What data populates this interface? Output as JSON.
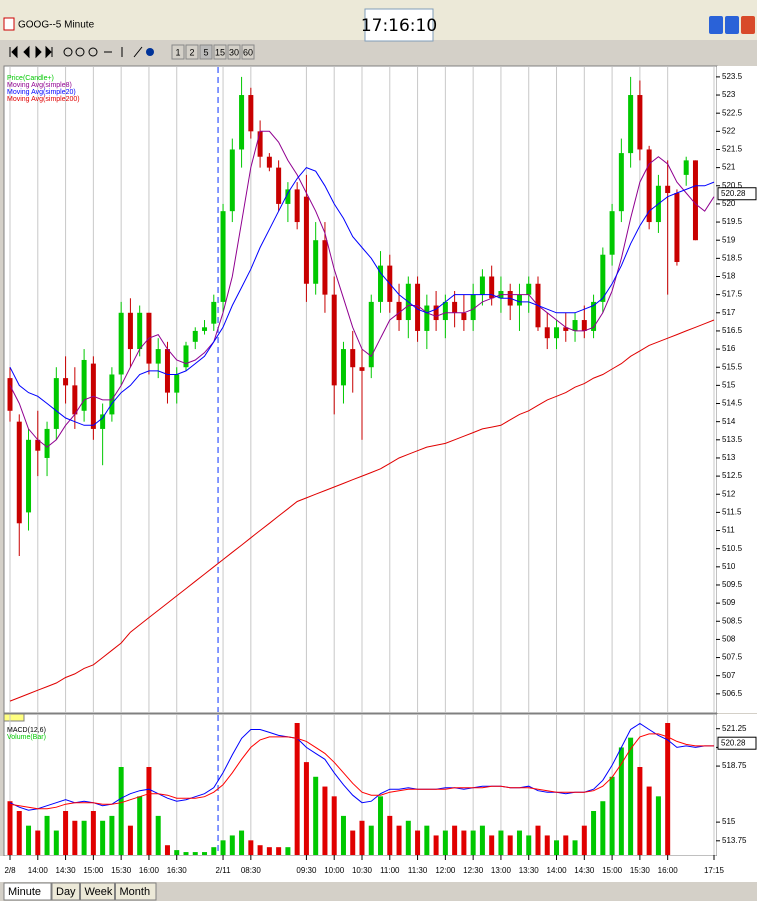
{
  "window": {
    "title": "GOOG--5 Minute",
    "clock": "17:16:10"
  },
  "toolbar": {
    "intervals": [
      "1",
      "2",
      "5",
      "15",
      "30",
      "60"
    ]
  },
  "tabs": [
    "Minute",
    "Day",
    "Week",
    "Month"
  ],
  "chart_data": [
    {
      "type": "candlestick",
      "categories": [
        "2/8",
        null,
        null,
        "14:00",
        null,
        null,
        "14:30",
        null,
        null,
        "15:00",
        null,
        null,
        "15:30",
        null,
        null,
        "16:00",
        null,
        null,
        "16:30",
        null,
        null,
        null,
        null,
        "2/11",
        null,
        null,
        "08:30",
        null,
        null,
        null,
        null,
        null,
        "09:30",
        null,
        null,
        "10:00",
        null,
        null,
        "10:30",
        null,
        null,
        "11:00",
        null,
        null,
        "11:30",
        null,
        null,
        "12:00",
        null,
        null,
        "12:30",
        null,
        null,
        "13:00",
        null,
        null,
        "13:30",
        null,
        null,
        "14:00",
        null,
        null,
        "14:30",
        null,
        null,
        "15:00",
        null,
        null,
        "15:30",
        null,
        null,
        "16:00",
        null,
        null,
        null,
        null,
        "17:15"
      ],
      "ylim": [
        506,
        523.8
      ],
      "yticks": [
        506.5,
        507,
        507.5,
        508,
        508.5,
        509,
        509.5,
        510,
        510.5,
        511,
        511.5,
        512,
        512.5,
        513,
        513.5,
        514,
        514.5,
        515,
        515.5,
        516,
        516.5,
        517,
        517.5,
        518,
        518.5,
        519,
        519.5,
        520,
        520.5,
        521,
        521.5,
        522,
        522.5,
        523,
        523.5
      ],
      "grid": true,
      "last_price": 520.28,
      "series": [
        {
          "name": "Price(Candle+)",
          "color": "#00c800",
          "down_color": "#c80000",
          "open": [
            515.2,
            514,
            511.5,
            513.5,
            513,
            513.8,
            515.2,
            515,
            514.3,
            515.6,
            513.8,
            514.2,
            515.3,
            517,
            516,
            517,
            515.6,
            516,
            514.8,
            515.5,
            516.2,
            516.5,
            516.7,
            517.3,
            519.8,
            521.5,
            523,
            522,
            521.3,
            521,
            520,
            520.4,
            520.2,
            517.8,
            519,
            517.5,
            515,
            516,
            515.5,
            515.5,
            517.3,
            518.3,
            517.3,
            516.8,
            517.8,
            516.5,
            517.2,
            516.8,
            517.3,
            517,
            516.8,
            517.5,
            518,
            517.4,
            517.6,
            517.2,
            517.5,
            517.8,
            516.6,
            516.3,
            516.6,
            516.5,
            516.8,
            516.5,
            517.3,
            518.6,
            519.8,
            521.4,
            523,
            521.5,
            519.5,
            520.5,
            520.3,
            520.8,
            521.2,
            null,
            null
          ],
          "high": [
            515.5,
            514.2,
            513.8,
            514.3,
            514,
            515.5,
            515.8,
            515.5,
            516,
            515.8,
            514.5,
            515.5,
            517.3,
            517.4,
            517.2,
            517,
            516.3,
            516.2,
            515.5,
            516.2,
            516.6,
            516.8,
            517.5,
            520,
            521.8,
            523.5,
            523.2,
            522.3,
            521.4,
            521.2,
            520.6,
            520.6,
            520.8,
            519.5,
            519.5,
            518,
            516.2,
            516.5,
            516,
            517.5,
            518.7,
            518.6,
            517.8,
            518,
            518,
            517.5,
            517.6,
            517.5,
            517.6,
            517.5,
            517.8,
            518.2,
            518.3,
            518,
            517.8,
            517.8,
            518,
            518,
            517,
            516.8,
            517,
            517,
            517.2,
            517.5,
            518.8,
            520,
            521.8,
            523.5,
            523.4,
            521.6,
            520.8,
            521.2,
            520.4,
            521.3,
            521.2,
            null,
            null
          ],
          "low": [
            514,
            510.3,
            511,
            512.5,
            512.5,
            513.5,
            514.5,
            513.8,
            514,
            513.5,
            512.8,
            514,
            515,
            515.5,
            515.8,
            515.3,
            515.2,
            514.5,
            514.5,
            515.4,
            516,
            516.4,
            516.5,
            517,
            519.5,
            521,
            521.8,
            521,
            520.9,
            519.8,
            519.5,
            519.3,
            517.3,
            517.5,
            517,
            514.2,
            514.5,
            514.8,
            513.5,
            515.2,
            517,
            517,
            516.5,
            516.3,
            516.2,
            516,
            516.5,
            516.3,
            516.6,
            516.5,
            516.5,
            517.2,
            517.2,
            517,
            516.8,
            516.5,
            517,
            516.5,
            516,
            516,
            516.2,
            516.2,
            516.3,
            516.3,
            517,
            518.3,
            519.5,
            521,
            521.2,
            519.3,
            519.2,
            517.5,
            518.3,
            520.5,
            519,
            null,
            null
          ],
          "close": [
            514.3,
            511.2,
            513.5,
            513.2,
            513.8,
            515.2,
            515,
            514.2,
            515.7,
            513.8,
            514.2,
            515.3,
            517,
            516,
            517,
            515.6,
            516,
            514.8,
            515.3,
            516.1,
            516.5,
            516.6,
            517.3,
            519.8,
            521.5,
            523,
            522,
            521.3,
            521,
            520,
            520.4,
            519.5,
            517.8,
            519,
            517.5,
            515,
            516,
            515.5,
            515.4,
            517.3,
            518.3,
            517.3,
            516.8,
            517.8,
            516.5,
            517.2,
            516.8,
            517.3,
            517,
            516.8,
            517.5,
            518,
            517.4,
            517.6,
            517.2,
            517.5,
            517.8,
            516.6,
            516.3,
            516.6,
            516.5,
            516.8,
            516.5,
            517.3,
            518.6,
            519.8,
            521.4,
            523,
            521.5,
            519.5,
            520.5,
            520.3,
            518.4,
            521.2,
            519,
            null,
            null
          ]
        },
        {
          "name": "Moving Avg(simple8)",
          "color": "#900090",
          "values": [
            515,
            514.5,
            513.8,
            513.5,
            513.3,
            513.5,
            513.9,
            514.2,
            514.6,
            514.7,
            514.6,
            514.6,
            515,
            515.5,
            516,
            516.3,
            516.4,
            516,
            515.7,
            515.6,
            515.7,
            515.9,
            516.2,
            517,
            518,
            519.5,
            521,
            522,
            522,
            521.7,
            521.2,
            520.8,
            520.3,
            519.8,
            519.2,
            518.2,
            517.4,
            516.6,
            516,
            515.8,
            516.3,
            516.8,
            517,
            517.2,
            517.2,
            517,
            516.9,
            517,
            517,
            517,
            517.1,
            517.3,
            517.4,
            517.5,
            517.5,
            517.5,
            517.5,
            517.2,
            517,
            516.8,
            516.6,
            516.5,
            516.5,
            516.6,
            517,
            517.6,
            518.5,
            519.6,
            520.6,
            521.1,
            521.3,
            521.1,
            520.6,
            520.3,
            520,
            519.8,
            520.2
          ]
        },
        {
          "name": "Moving Avg(simple20)",
          "color": "#0000ff",
          "values": [
            515.5,
            515,
            514.8,
            514.7,
            514.5,
            514.3,
            514.1,
            514,
            513.9,
            513.9,
            514.1,
            514.5,
            514.8,
            515,
            515.3,
            515.4,
            515.4,
            515.3,
            515.3,
            515.4,
            515.6,
            515.8,
            516.2,
            516.6,
            517.2,
            517.7,
            518.2,
            518.8,
            519.3,
            519.8,
            520.3,
            520.7,
            521,
            520.9,
            520.5,
            520,
            519.6,
            519.1,
            518.8,
            518.5,
            518.1,
            517.8,
            517.5,
            517.3,
            517.1,
            517,
            517.1,
            517.3,
            517.5,
            517.5,
            517.5,
            517.5,
            517.5,
            517.4,
            517.4,
            517.3,
            517.3,
            517.2,
            517.1,
            517,
            517,
            517,
            517.1,
            517.2,
            517.4,
            517.8,
            518.3,
            518.9,
            519.4,
            519.8,
            520,
            520.2,
            520.3,
            520.4,
            520.5,
            520.5,
            520.6
          ]
        },
        {
          "name": "Moving Avg(simple200)",
          "color": "#e00000",
          "values": [
            506.3,
            506.4,
            506.5,
            506.6,
            506.7,
            506.8,
            506.95,
            507.05,
            507.2,
            507.3,
            507.5,
            507.7,
            507.9,
            508.2,
            508.4,
            508.6,
            508.8,
            509,
            509.2,
            509.4,
            509.6,
            509.8,
            510,
            510.2,
            510.4,
            510.6,
            510.8,
            511,
            511.2,
            511.4,
            511.6,
            511.8,
            511.9,
            512,
            512.1,
            512.2,
            512.3,
            512.4,
            512.5,
            512.6,
            512.7,
            512.85,
            513,
            513.1,
            513.2,
            513.3,
            513.35,
            513.4,
            513.5,
            513.6,
            513.7,
            513.8,
            513.85,
            513.9,
            514.05,
            514.2,
            514.3,
            514.45,
            514.6,
            514.7,
            514.8,
            514.95,
            515.05,
            515.2,
            515.3,
            515.45,
            515.6,
            515.8,
            515.95,
            516.1,
            516.2,
            516.3,
            516.4,
            516.5,
            516.6,
            516.7,
            516.8
          ]
        }
      ]
    },
    {
      "type": "macd",
      "ylim": [
        512.8,
        522.1
      ],
      "yticks": [
        513.75,
        515,
        518.75,
        520,
        521.25
      ],
      "last_value": 520.28,
      "series": [
        {
          "name": "MACD(12,6)",
          "color": "#0000ff",
          "values": [
            516.3,
            516,
            515.8,
            515.9,
            516.1,
            516.3,
            516.5,
            516.3,
            516.4,
            516.3,
            516.1,
            516.2,
            516.6,
            516.9,
            517.1,
            517.2,
            516.9,
            516.6,
            516.4,
            516.5,
            516.7,
            516.9,
            517.3,
            518.3,
            519.5,
            520.6,
            521.2,
            521.2,
            521,
            520.8,
            520.7,
            520.6,
            520,
            519.6,
            519.2,
            518.3,
            517.5,
            516.8,
            516.3,
            516.4,
            516.9,
            517.2,
            517.2,
            517.3,
            517.2,
            517.2,
            517.2,
            517.3,
            517.3,
            517.2,
            517.3,
            517.4,
            517.4,
            517.4,
            517.3,
            517.3,
            517.4,
            517.1,
            517,
            517,
            516.9,
            517,
            517,
            517.2,
            517.8,
            518.8,
            520,
            521.2,
            521.6,
            521.2,
            520.8,
            520.5,
            520,
            520.1,
            520,
            520.1,
            520.1
          ]
        },
        {
          "color": "#ff0000",
          "values": [
            516.2,
            516.1,
            516,
            515.9,
            515.9,
            516,
            516.2,
            516.3,
            516.3,
            516.3,
            516.2,
            516.2,
            516.3,
            516.5,
            516.7,
            516.9,
            516.9,
            516.8,
            516.6,
            516.6,
            516.6,
            516.7,
            517,
            517.5,
            518.3,
            519.2,
            520,
            520.5,
            520.7,
            520.7,
            520.7,
            520.6,
            520.4,
            520,
            519.6,
            519,
            518.3,
            517.6,
            517,
            516.8,
            516.8,
            517,
            517.1,
            517.2,
            517.2,
            517.2,
            517.2,
            517.2,
            517.3,
            517.3,
            517.3,
            517.3,
            517.4,
            517.4,
            517.3,
            517.3,
            517.3,
            517.2,
            517.1,
            517,
            517,
            517,
            517,
            517.1,
            517.4,
            518,
            518.9,
            519.9,
            520.7,
            520.9,
            520.9,
            520.7,
            520.4,
            520.2,
            520.1,
            520.1,
            520.1
          ]
        },
        {
          "name": "Volume(Bar)",
          "type": "bar",
          "color": "#00c800",
          "down_color": "#e00000",
          "values": [
            55,
            45,
            30,
            25,
            40,
            25,
            45,
            35,
            35,
            45,
            35,
            40,
            90,
            30,
            60,
            90,
            40,
            10,
            5,
            3,
            3,
            3,
            8,
            15,
            20,
            25,
            15,
            10,
            8,
            8,
            8,
            135,
            95,
            80,
            70,
            60,
            40,
            25,
            35,
            30,
            60,
            40,
            30,
            35,
            25,
            30,
            20,
            25,
            30,
            25,
            25,
            30,
            20,
            25,
            20,
            25,
            20,
            30,
            20,
            15,
            20,
            15,
            30,
            45,
            55,
            80,
            110,
            120,
            90,
            70,
            60,
            135,
            null,
            null,
            null,
            null,
            null
          ]
        }
      ]
    }
  ]
}
